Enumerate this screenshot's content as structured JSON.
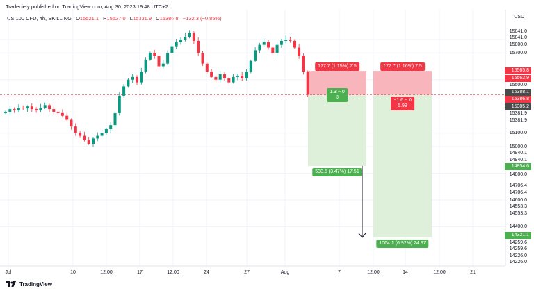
{
  "header": {
    "published": "Tradeciety published on TradingView.com, Aug 30, 2023 19:48 UTC+2"
  },
  "legend": {
    "symbol": "US 100 CFD, 4h, SKILLING",
    "o_label": "O",
    "o": "15521.1",
    "h_label": "H",
    "h": "15527.0",
    "l_label": "L",
    "l": "15331.9",
    "c_label": "C",
    "c": "15386.8",
    "change": "−132.3 (−0.85%)"
  },
  "price_axis": {
    "currency": "USD",
    "labels": [
      [
        "15841.0",
        15860
      ],
      [
        "15841.0",
        15841
      ],
      [
        "15800.0",
        15800
      ],
      [
        "15700.0",
        15700
      ],
      [
        "15500.0",
        15500
      ],
      [
        "15381.9",
        15350
      ],
      [
        "15381.9",
        15320
      ],
      [
        "15100.0",
        15100
      ],
      [
        "15000.0",
        15000
      ],
      [
        "14940.1",
        14955
      ],
      [
        "14940.1",
        14925
      ],
      [
        "14800.0",
        14790
      ],
      [
        "14706.4",
        14705
      ],
      [
        "14706.4",
        14670
      ],
      [
        "14600.0",
        14600
      ],
      [
        "14553.3",
        14560
      ],
      [
        "14553.3",
        14525
      ],
      [
        "14400.0",
        14400
      ],
      [
        "14259.6",
        14280
      ],
      [
        "14259.6",
        14245
      ],
      [
        "14226.0",
        14210
      ],
      [
        "14226.0",
        14185
      ]
    ],
    "tags": [
      {
        "text": "15565.8",
        "value": 15565.8,
        "color": "#f23645"
      },
      {
        "text": "15562.9",
        "value": 15545,
        "color": "#f23645"
      },
      {
        "text": "15388.1",
        "value": 15410,
        "color": "#4a4a4a"
      },
      {
        "text": "15386.8",
        "value": 15386.8,
        "color": "#f23645"
      },
      {
        "text": "15385.2",
        "value": 15363,
        "color": "#4a4a4a"
      },
      {
        "text": "14854.6",
        "value": 14854.6,
        "color": "#4caf50"
      },
      {
        "text": "14321.1",
        "value": 14321.1,
        "color": "#4caf50"
      }
    ]
  },
  "time_axis": {
    "labels": [
      "Jul",
      "10",
      "12:00",
      "17",
      "12:00",
      "24",
      "27",
      "Aug",
      "7",
      "12:00",
      "14",
      "12:00",
      "21"
    ]
  },
  "positions": [
    {
      "entry": 15386.8,
      "stop": 15565.8,
      "target": 14854.6,
      "stop_label": "177.7 (1.15%) 7.5",
      "mid_label_1": "1.3 − 0",
      "mid_label_2": "3",
      "target_label": "533.5 (3.47%) 17.51",
      "mid_color": "#4caf50"
    },
    {
      "entry": 15386.8,
      "stop": 15565.8,
      "target": 14321.1,
      "stop_label": "177.7 (1.16%) 7.5",
      "mid_label_1": "−1.6 − 0",
      "mid_label_2": "5.99",
      "target_label": "1064.1 (6.92%) 24.97",
      "mid_color": "#f23645"
    }
  ],
  "chart_data": {
    "type": "candlestick",
    "timeframe": "4h",
    "up_color": "#089981",
    "down_color": "#f23645",
    "closes": [
      15260,
      15280,
      15270,
      15290,
      15285,
      15300,
      15280,
      15270,
      15290,
      15310,
      15280,
      15260,
      15250,
      15230,
      15200,
      15150,
      15100,
      15080,
      15050,
      15020,
      15060,
      15080,
      15100,
      15130,
      15160,
      15250,
      15380,
      15450,
      15500,
      15520,
      15480,
      15560,
      15650,
      15700,
      15680,
      15600,
      15620,
      15700,
      15750,
      15780,
      15800,
      15820,
      15850,
      15790,
      15700,
      15620,
      15560,
      15520,
      15500,
      15540,
      15510,
      15480,
      15520,
      15530,
      15510,
      15560,
      15640,
      15720,
      15760,
      15780,
      15740,
      15700,
      15760,
      15790,
      15800,
      15790,
      15740,
      15680,
      15560,
      15386.8
    ]
  },
  "footer": {
    "brand": "TradingView"
  }
}
